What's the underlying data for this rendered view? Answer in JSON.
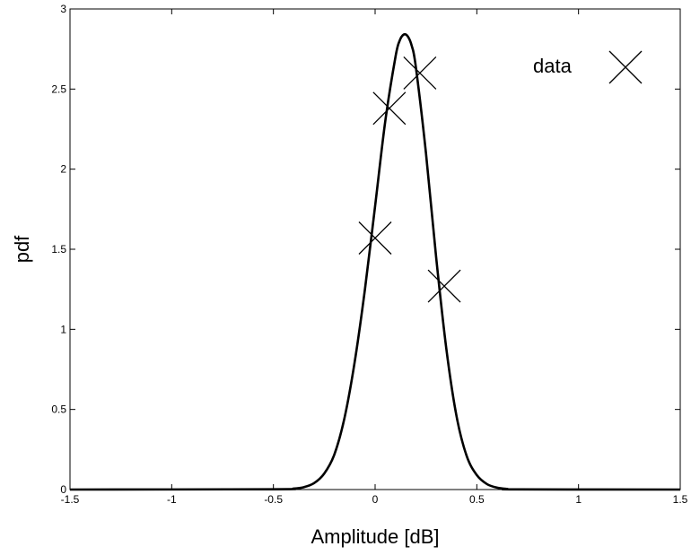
{
  "chart_data": {
    "type": "line",
    "xlabel": "Amplitude [dB]",
    "ylabel": "pdf",
    "xlim": [
      -1.5,
      1.5
    ],
    "ylim": [
      0,
      3
    ],
    "xticks": [
      -1.5,
      -1,
      -0.5,
      0,
      0.5,
      1,
      1.5
    ],
    "xtick_labels": [
      "-1.5",
      "-1",
      "-0.5",
      "0",
      "0.5",
      "1",
      "1.5"
    ],
    "yticks": [
      0,
      0.5,
      1,
      1.5,
      2,
      2.5,
      3
    ],
    "ytick_labels": [
      "0",
      "0.5",
      "1",
      "1.5",
      "2",
      "2.5",
      "3"
    ],
    "grid": false,
    "legend": {
      "position": "top-right",
      "entries": [
        {
          "label": "data",
          "marker": "x"
        }
      ]
    },
    "series": [
      {
        "style": "line",
        "color": "#000000",
        "x": [
          -1.5,
          -0.5,
          -0.4,
          -0.35,
          -0.3,
          -0.25,
          -0.2,
          -0.15,
          -0.1,
          -0.05,
          0,
          0.05,
          0.1,
          0.12,
          0.14,
          0.16,
          0.18,
          0.2,
          0.25,
          0.3,
          0.35,
          0.4,
          0.45,
          0.5,
          0.55,
          0.6,
          0.65,
          0.7,
          1.5
        ],
        "y": [
          0,
          0.002,
          0.006,
          0.015,
          0.04,
          0.1,
          0.22,
          0.45,
          0.8,
          1.25,
          1.77,
          2.3,
          2.7,
          2.8,
          2.84,
          2.83,
          2.77,
          2.64,
          2.1,
          1.45,
          0.88,
          0.46,
          0.21,
          0.09,
          0.034,
          0.012,
          0.004,
          0.001,
          0
        ]
      },
      {
        "name": "data",
        "style": "markers",
        "marker": "x",
        "color": "#000000",
        "x": [
          0.0,
          0.07,
          0.22,
          0.34
        ],
        "y": [
          1.57,
          2.38,
          2.6,
          1.27
        ]
      }
    ]
  }
}
